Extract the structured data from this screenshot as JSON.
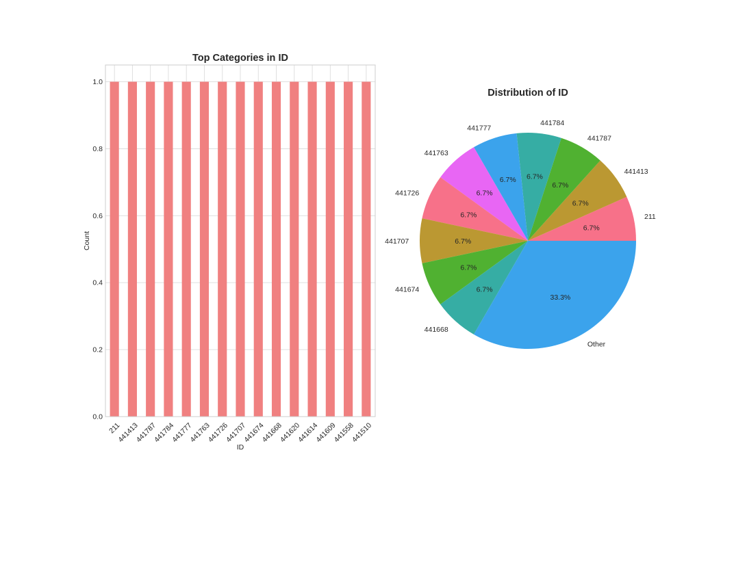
{
  "chart_data": [
    {
      "type": "bar",
      "title": "Top Categories in ID",
      "xlabel": "ID",
      "ylabel": "Count",
      "categories": [
        "211",
        "441413",
        "441787",
        "441784",
        "441777",
        "441763",
        "441726",
        "441707",
        "441674",
        "441668",
        "441620",
        "441614",
        "441609",
        "441558",
        "441510"
      ],
      "values": [
        1,
        1,
        1,
        1,
        1,
        1,
        1,
        1,
        1,
        1,
        1,
        1,
        1,
        1,
        1
      ],
      "ylim": [
        0,
        1.05
      ],
      "yticks": [
        "0.0",
        "0.2",
        "0.4",
        "0.6",
        "0.8",
        "1.0"
      ],
      "grid": true,
      "color": "#f08080"
    },
    {
      "type": "pie",
      "title": "Distribution of ID",
      "labels": [
        "211",
        "441413",
        "441787",
        "441784",
        "441777",
        "441763",
        "441726",
        "441707",
        "441674",
        "441668",
        "Other"
      ],
      "percent_labels": [
        "6.7%",
        "6.7%",
        "6.7%",
        "6.7%",
        "6.7%",
        "6.7%",
        "6.7%",
        "6.7%",
        "6.7%",
        "6.7%",
        "33.3%"
      ],
      "values": [
        1,
        1,
        1,
        1,
        1,
        1,
        1,
        1,
        1,
        1,
        5
      ],
      "colors": [
        "#f77189",
        "#bb9832",
        "#50b131",
        "#36ada4",
        "#3ba3ec",
        "#e866f4",
        "#f77189",
        "#bb9832",
        "#50b131",
        "#36ada4",
        "#3ba3ec"
      ]
    }
  ]
}
